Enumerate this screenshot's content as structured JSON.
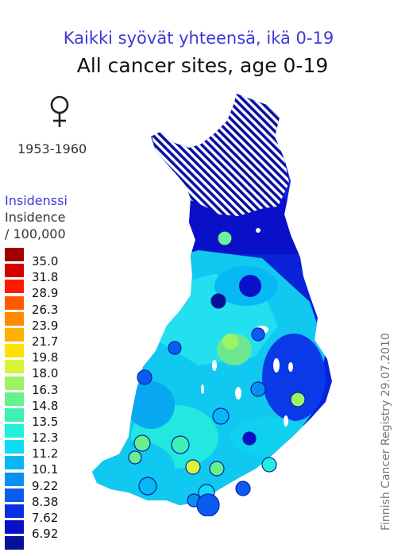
{
  "title_fi": "Kaikki syövät yhteensä, ikä 0-19",
  "title_en": "All cancer sites, age 0-19",
  "sex_symbol": "female-symbol",
  "period": "1953-1960",
  "legend": {
    "title_fi": "Insidenssi",
    "title_en": "Insidence",
    "unit": "/ 100,000",
    "bins": [
      {
        "value": "35.0",
        "color": "#a00000"
      },
      {
        "value": "31.8",
        "color": "#d40000"
      },
      {
        "value": "28.9",
        "color": "#ff1a00"
      },
      {
        "value": "26.3",
        "color": "#ff5a00"
      },
      {
        "value": "23.9",
        "color": "#ff8a00"
      },
      {
        "value": "21.7",
        "color": "#ffb000"
      },
      {
        "value": "19.8",
        "color": "#ffe000"
      },
      {
        "value": "18.0",
        "color": "#d6f53a"
      },
      {
        "value": "16.3",
        "color": "#9ef265"
      },
      {
        "value": "14.8",
        "color": "#66f08e"
      },
      {
        "value": "13.5",
        "color": "#3ef0b4"
      },
      {
        "value": "12.3",
        "color": "#22f0dc"
      },
      {
        "value": "11.2",
        "color": "#10dcf5"
      },
      {
        "value": "10.1",
        "color": "#08b8f5"
      },
      {
        "value": "9.22",
        "color": "#0890f0"
      },
      {
        "value": "8.38",
        "color": "#0a5cf0"
      },
      {
        "value": "7.62",
        "color": "#0a2ee0"
      },
      {
        "value": "6.92",
        "color": "#0a10c8"
      },
      {
        "value": "",
        "color": "#061098"
      }
    ]
  },
  "credit": "Finnish Cancer Registry 29.07.2010",
  "cities": [
    {
      "color": "#6ef0a0"
    },
    {
      "color": "#061098"
    },
    {
      "color": "#0a5cf0"
    },
    {
      "color": "#0a5cf0"
    },
    {
      "color": "#0a5cf0"
    },
    {
      "color": "#0890f0"
    },
    {
      "color": "#9ef265"
    },
    {
      "color": "#08b8f5"
    },
    {
      "color": "#0a10c8"
    },
    {
      "color": "#66f08e"
    },
    {
      "color": "#3ef0b4"
    },
    {
      "color": "#66f08e"
    },
    {
      "color": "#d6f53a"
    },
    {
      "color": "#66f08e"
    },
    {
      "color": "#22f0dc"
    },
    {
      "color": "#08b8f5"
    },
    {
      "color": "#0a5cf0"
    },
    {
      "color": "#0890f0"
    },
    {
      "color": "#10dcf5"
    },
    {
      "color": "#0a5cf0"
    }
  ]
}
